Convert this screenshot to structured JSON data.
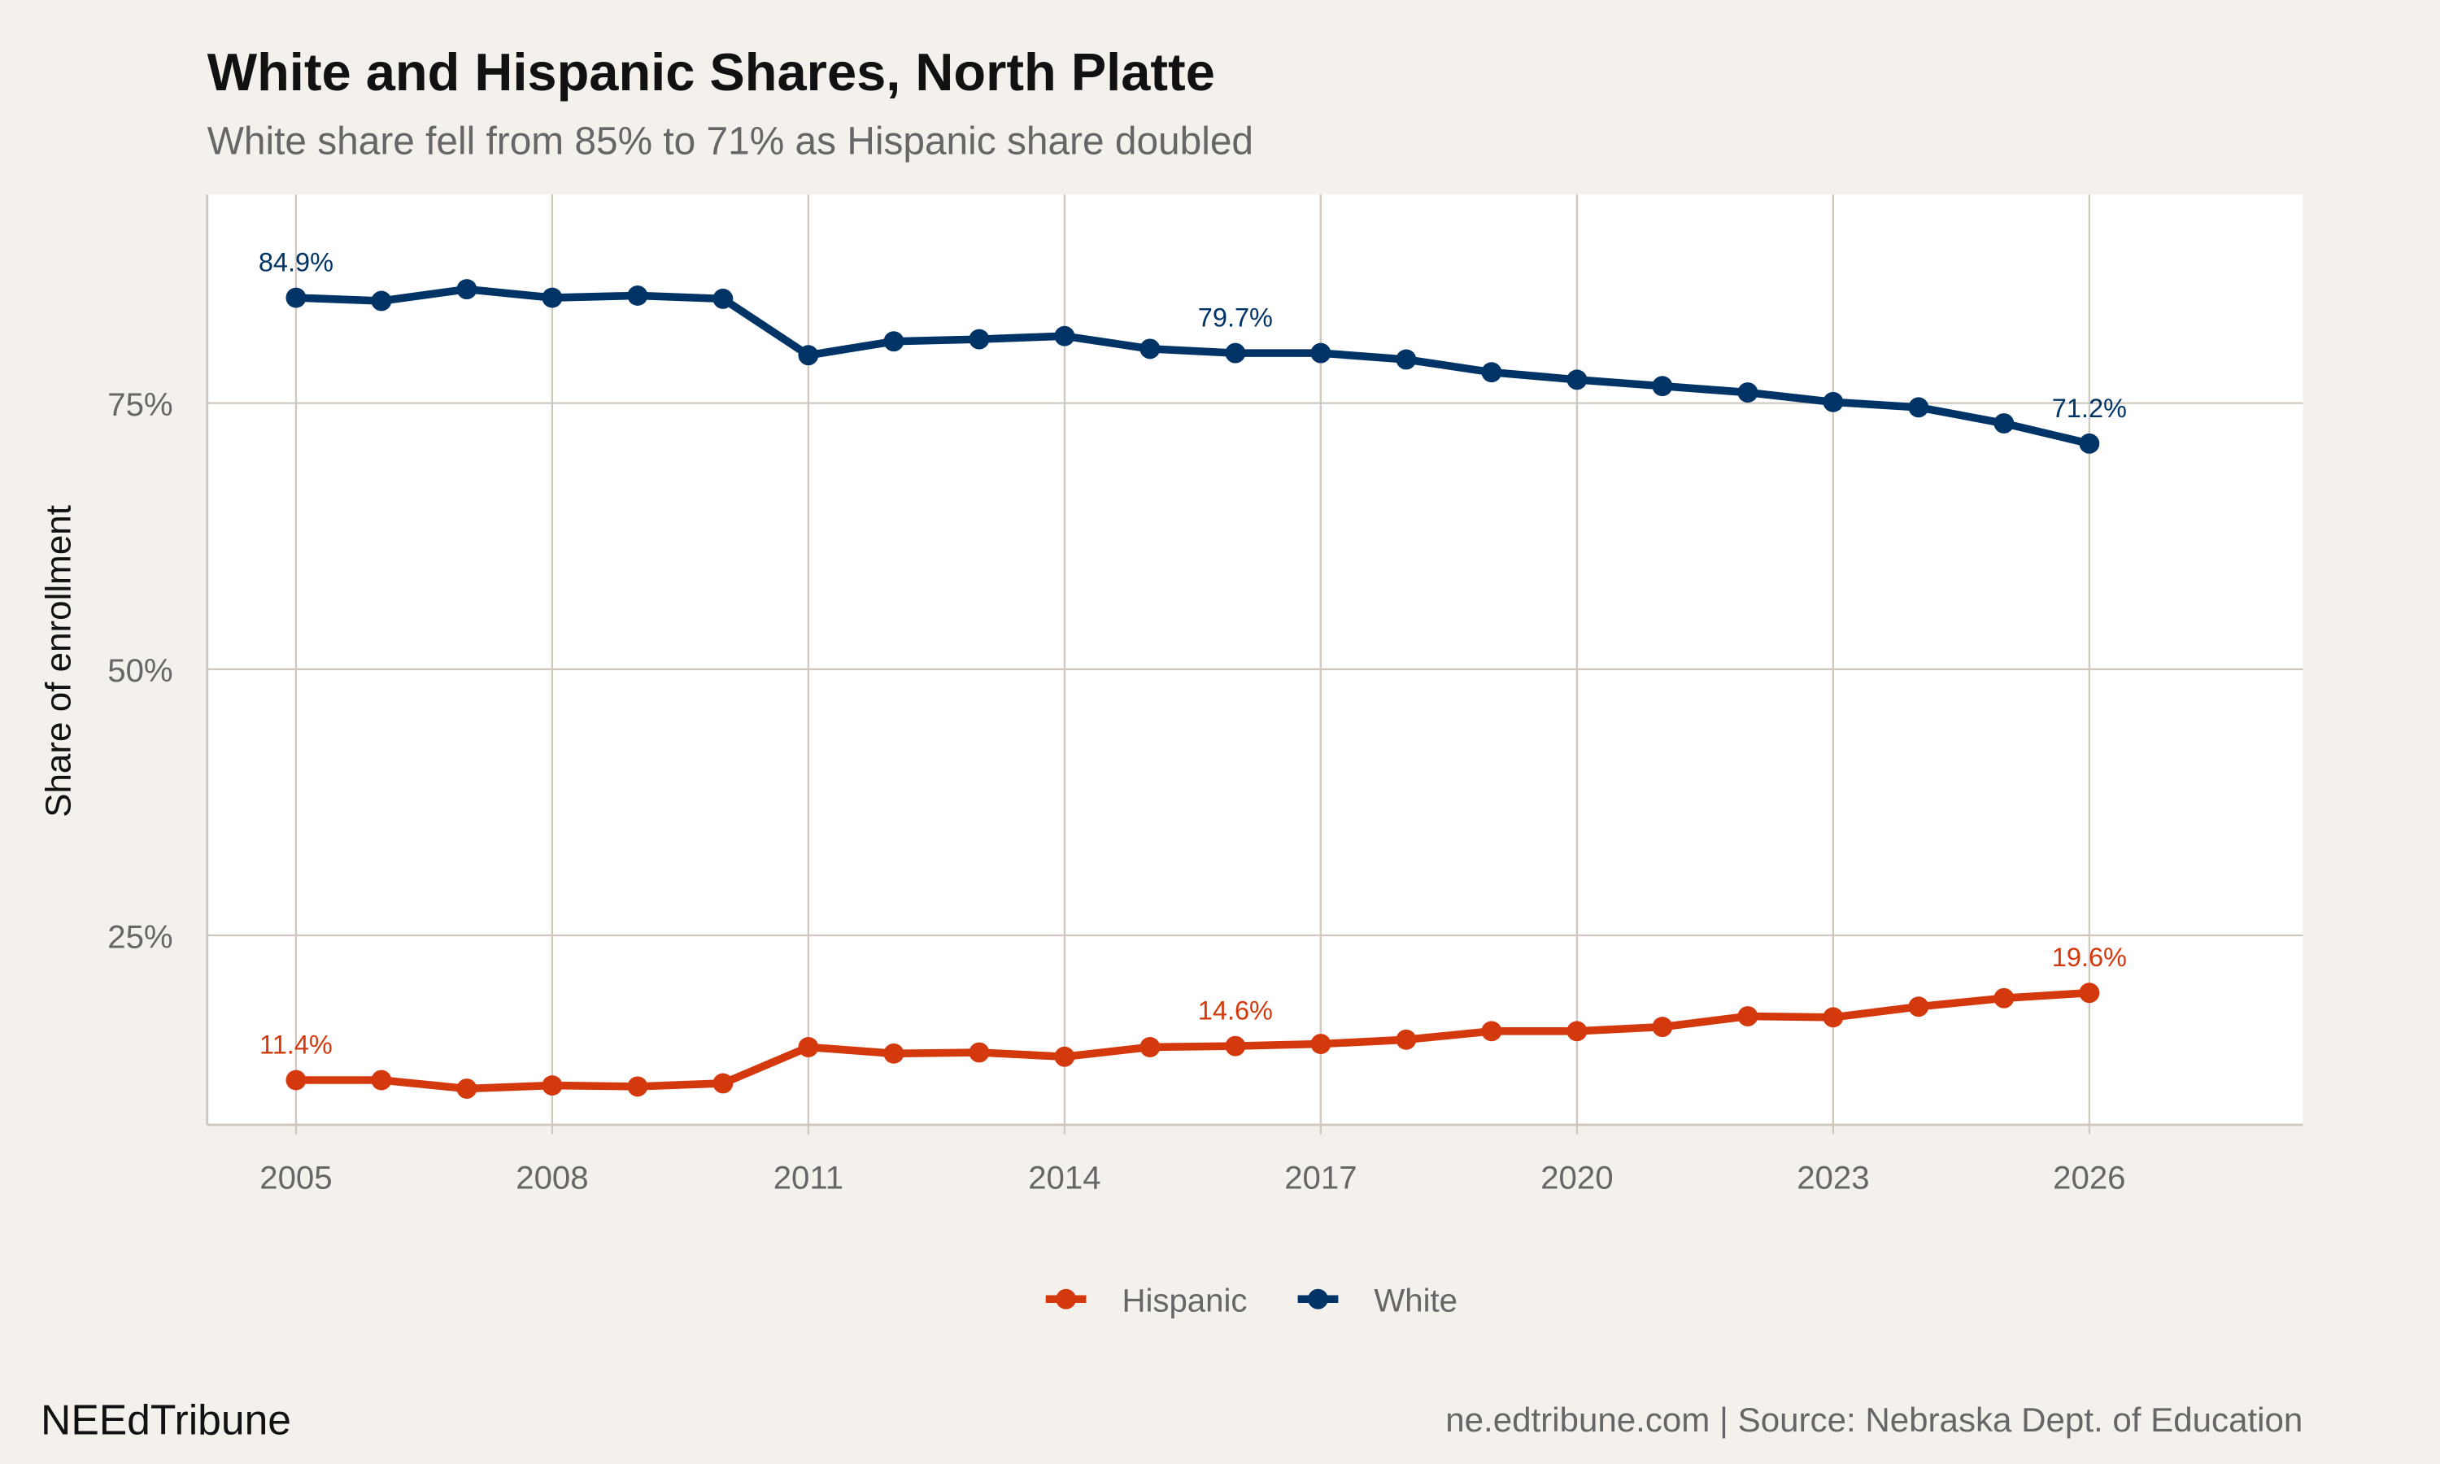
{
  "chart_data": {
    "type": "line",
    "title": "White and Hispanic Shares, North Platte",
    "subtitle": "White share fell from 85% to 71% as Hispanic share doubled",
    "xlabel": "",
    "ylabel": "Share of enrollment",
    "x": [
      2005,
      2006,
      2007,
      2008,
      2009,
      2010,
      2011,
      2012,
      2013,
      2014,
      2015,
      2016,
      2017,
      2018,
      2019,
      2020,
      2021,
      2022,
      2023,
      2024,
      2025,
      2026
    ],
    "series": [
      {
        "name": "Hispanic",
        "color": "#d4380d",
        "values": [
          11.4,
          11.4,
          10.6,
          10.9,
          10.8,
          11.1,
          14.5,
          13.9,
          14.0,
          13.6,
          14.5,
          14.6,
          14.8,
          15.2,
          16.0,
          16.0,
          16.4,
          17.4,
          17.3,
          18.3,
          19.1,
          19.6
        ],
        "labels": [
          {
            "x": 2005,
            "text": "11.4%"
          },
          {
            "x": 2016,
            "text": "14.6%"
          },
          {
            "x": 2026,
            "text": "19.6%"
          }
        ]
      },
      {
        "name": "White",
        "color": "#003366",
        "values": [
          84.9,
          84.6,
          85.7,
          84.9,
          85.1,
          84.8,
          79.5,
          80.8,
          81.0,
          81.3,
          80.1,
          79.7,
          79.7,
          79.1,
          77.9,
          77.2,
          76.6,
          76.0,
          75.1,
          74.6,
          73.1,
          71.2
        ],
        "labels": [
          {
            "x": 2005,
            "text": "84.9%"
          },
          {
            "x": 2016,
            "text": "79.7%"
          },
          {
            "x": 2026,
            "text": "71.2%"
          }
        ]
      }
    ],
    "xticks": [
      2005,
      2008,
      2011,
      2014,
      2017,
      2020,
      2023,
      2026
    ],
    "xtick_labels": [
      "2005",
      "2008",
      "2011",
      "2014",
      "2017",
      "2020",
      "2023",
      "2026"
    ],
    "yticks": [
      25,
      50,
      75
    ],
    "ytick_labels": [
      "25%",
      "50%",
      "75%"
    ],
    "xlim": [
      2003.96,
      2028.5
    ],
    "ylim": [
      7.2,
      94.6
    ],
    "grid": true,
    "legend_position": "bottom"
  },
  "footer": {
    "brand": "NEEdTribune",
    "source": "ne.edtribune.com | Source: Nebraska Dept. of Education"
  }
}
